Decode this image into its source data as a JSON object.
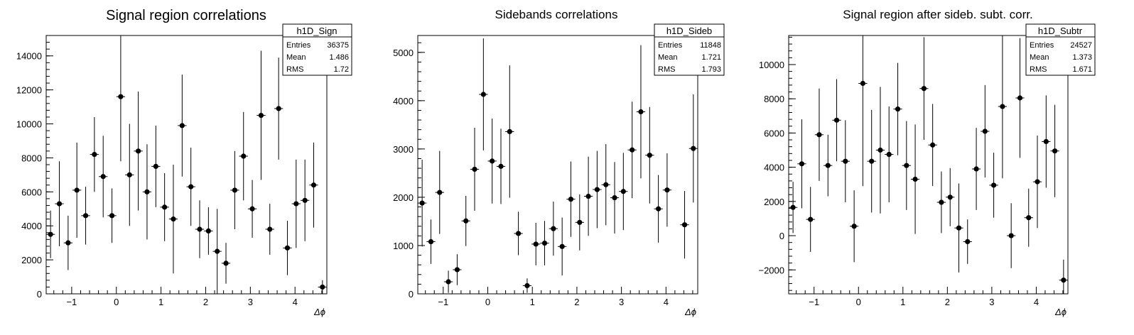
{
  "chart_data": [
    {
      "type": "scatter",
      "title": "Signal region correlations",
      "xlabel": "Δϕ",
      "ylabel": "",
      "xlim": [
        -1.5708,
        4.7124
      ],
      "ylim": [
        0,
        15200
      ],
      "yticks": [
        0,
        2000,
        4000,
        6000,
        8000,
        10000,
        12000,
        14000
      ],
      "ytick_labels": [
        "0",
        "2000",
        "4000",
        "6000",
        "8000",
        "10000",
        "12000",
        "14000"
      ],
      "xticks": [
        -1,
        0,
        1,
        2,
        3,
        4
      ],
      "xtick_labels": [
        "−1",
        "0",
        "1",
        "2",
        "3",
        "4"
      ],
      "series": [
        {
          "x": [
            -1.473,
            -1.276,
            -1.08,
            -0.884,
            -0.687,
            -0.491,
            -0.295,
            -0.098,
            0.098,
            0.295,
            0.491,
            0.687,
            0.884,
            1.08,
            1.276,
            1.473,
            1.669,
            1.865,
            2.062,
            2.258,
            2.454,
            2.651,
            2.847,
            3.043,
            3.24,
            3.436,
            3.633,
            3.829,
            4.025,
            4.222,
            4.418,
            4.614
          ],
          "y": [
            3500,
            5300,
            3000,
            6100,
            4600,
            8200,
            6900,
            4600,
            11600,
            7000,
            8400,
            6000,
            7500,
            5100,
            4400,
            9900,
            6300,
            3800,
            3700,
            2500,
            1800,
            6100,
            8100,
            5000,
            10500,
            3800,
            10900,
            2700,
            5300,
            5500,
            6400,
            400
          ],
          "yerr": [
            1400,
            2500,
            1600,
            2800,
            1700,
            2200,
            2400,
            1600,
            3800,
            3000,
            3500,
            2800,
            2400,
            2000,
            3200,
            3000,
            2300,
            1700,
            1400,
            2500,
            1200,
            2300,
            2600,
            1700,
            3800,
            1500,
            3000,
            1600,
            2600,
            2400,
            2500,
            400
          ]
        }
      ],
      "legend": {
        "position": "top-right",
        "name": "h1D_Sign",
        "entries_label": "Entries",
        "entries": "36375",
        "mean_label": "Mean",
        "mean": "1.486",
        "rms_label": "RMS",
        "rms": "1.72"
      }
    },
    {
      "type": "scatter",
      "title": "Sidebands correlations",
      "xlabel": "Δϕ",
      "ylabel": "",
      "xlim": [
        -1.5708,
        4.7124
      ],
      "ylim": [
        0,
        5350
      ],
      "yticks": [
        0,
        1000,
        2000,
        3000,
        4000,
        5000
      ],
      "ytick_labels": [
        "0",
        "1000",
        "2000",
        "3000",
        "4000",
        "5000"
      ],
      "xticks": [
        -1,
        0,
        1,
        2,
        3,
        4
      ],
      "xtick_labels": [
        "−1",
        "0",
        "1",
        "2",
        "3",
        "4"
      ],
      "series": [
        {
          "x": [
            -1.473,
            -1.276,
            -1.08,
            -0.884,
            -0.687,
            -0.491,
            -0.295,
            -0.098,
            0.098,
            0.295,
            0.491,
            0.687,
            0.884,
            1.08,
            1.276,
            1.473,
            1.669,
            1.865,
            2.062,
            2.258,
            2.454,
            2.651,
            2.847,
            3.043,
            3.24,
            3.436,
            3.633,
            3.829,
            4.025,
            4.222,
            4.418,
            4.614
          ],
          "y": [
            1880,
            1080,
            2100,
            250,
            500,
            1510,
            2580,
            4130,
            2750,
            2640,
            3360,
            1250,
            170,
            1030,
            1050,
            1350,
            980,
            1960,
            1480,
            2020,
            2160,
            2260,
            1990,
            2120,
            2980,
            3770,
            2870,
            1760,
            2150,
            null,
            1430,
            3010
          ],
          "yerr": [
            900,
            460,
            860,
            230,
            320,
            520,
            860,
            1160,
            880,
            780,
            1370,
            450,
            150,
            440,
            460,
            560,
            600,
            780,
            580,
            820,
            800,
            840,
            740,
            800,
            1000,
            1380,
            1000,
            700,
            760,
            null,
            700,
            1120
          ]
        }
      ],
      "legend": {
        "position": "top-right",
        "name": "h1D_Sideb",
        "entries_label": "Entries",
        "entries": "11848",
        "mean_label": "Mean",
        "mean": "1.721",
        "rms_label": "RMS",
        "rms": "1.793"
      }
    },
    {
      "type": "scatter",
      "title": "Signal region after sideb. subt. corr.",
      "xlabel": "Δϕ",
      "ylabel": "",
      "xlim": [
        -1.5708,
        4.7124
      ],
      "ylim": [
        -3400,
        11700
      ],
      "yticks": [
        -2000,
        0,
        2000,
        4000,
        6000,
        8000,
        10000
      ],
      "ytick_labels": [
        "−2000",
        "0",
        "2000",
        "4000",
        "6000",
        "8000",
        "10000"
      ],
      "xticks": [
        -1,
        0,
        1,
        2,
        3,
        4
      ],
      "xtick_labels": [
        "−1",
        "0",
        "1",
        "2",
        "3",
        "4"
      ],
      "series": [
        {
          "x": [
            -1.473,
            -1.276,
            -1.08,
            -0.884,
            -0.687,
            -0.491,
            -0.295,
            -0.098,
            0.098,
            0.295,
            0.491,
            0.687,
            0.884,
            1.08,
            1.276,
            1.473,
            1.669,
            1.865,
            2.062,
            2.258,
            2.454,
            2.651,
            2.847,
            3.043,
            3.24,
            3.436,
            3.633,
            3.829,
            4.025,
            4.222,
            4.418,
            4.614
          ],
          "y": [
            1650,
            4200,
            950,
            5900,
            4100,
            6750,
            4350,
            550,
            8900,
            4350,
            5000,
            4750,
            7400,
            4100,
            3300,
            8600,
            5300,
            1950,
            2250,
            450,
            -350,
            3900,
            6100,
            2950,
            7550,
            0,
            8050,
            1050,
            3150,
            5500,
            4950,
            -2600
          ],
          "yerr": [
            1500,
            2600,
            1900,
            2700,
            1800,
            2400,
            2400,
            2100,
            6000,
            3000,
            3700,
            2800,
            2700,
            2600,
            3200,
            3000,
            2400,
            1800,
            1700,
            2600,
            1300,
            2400,
            2700,
            1900,
            4200,
            1900,
            3500,
            1700,
            2700,
            2700,
            2700,
            1200
          ]
        }
      ],
      "legend": {
        "position": "top-right",
        "name": "h1D_Subtr",
        "entries_label": "Entries",
        "entries": "24527",
        "mean_label": "Mean",
        "mean": "1.373",
        "rms_label": "RMS",
        "rms": "1.671"
      }
    }
  ]
}
